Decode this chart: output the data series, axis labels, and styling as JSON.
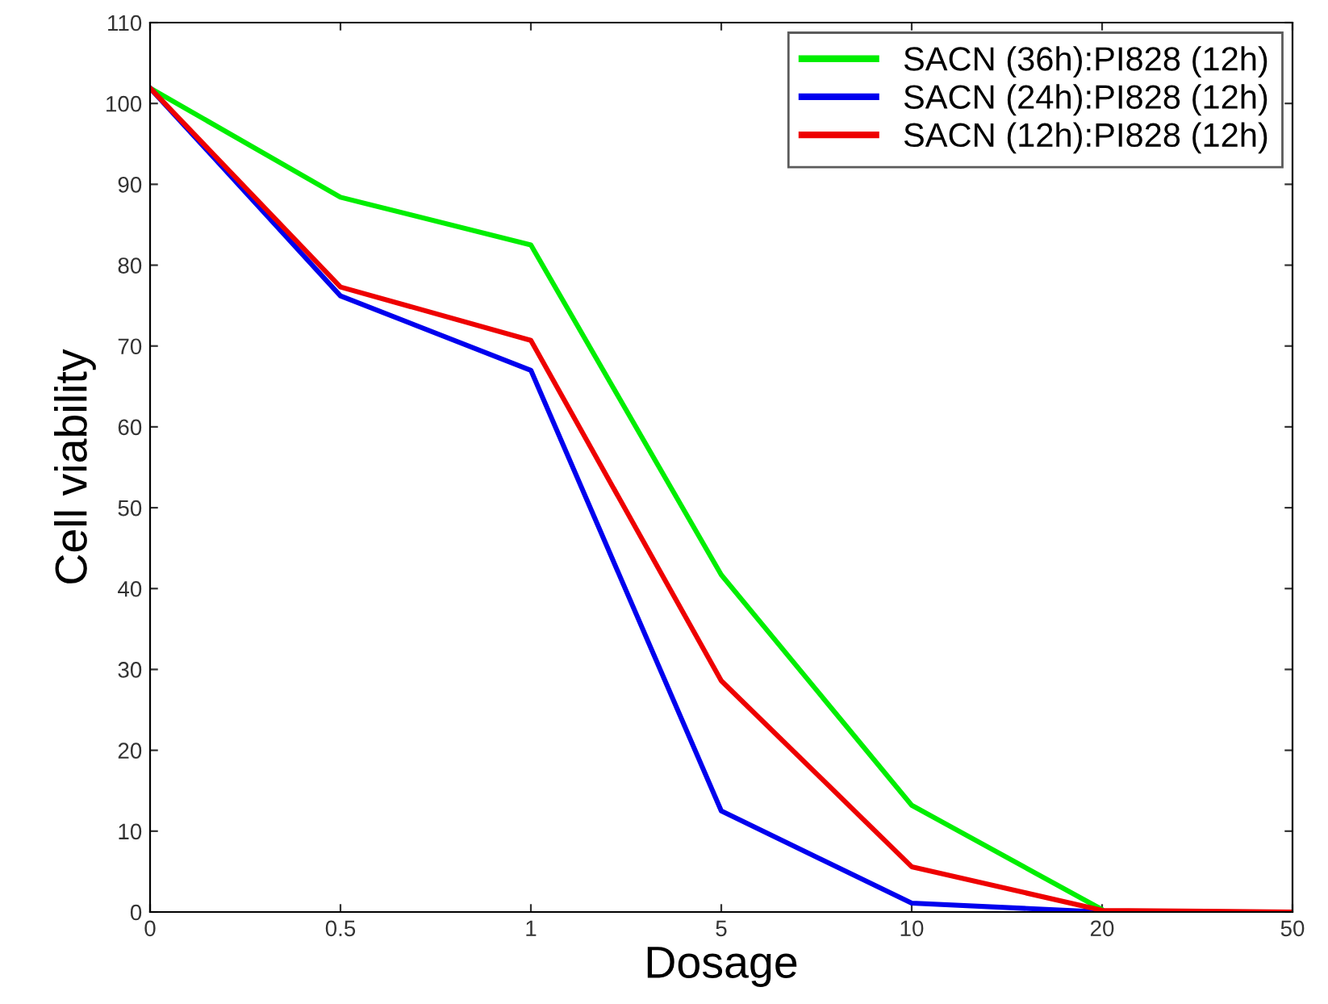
{
  "chart_data": {
    "type": "line",
    "xlabel": "Dosage",
    "ylabel": "Cell viability",
    "categories": [
      "0",
      "0.5",
      "1",
      "5",
      "10",
      "20",
      "50"
    ],
    "ylim": [
      0,
      110
    ],
    "yticks": [
      0,
      10,
      20,
      30,
      40,
      50,
      60,
      70,
      80,
      90,
      100,
      110
    ],
    "grid": false,
    "legend": "top right",
    "marker": "none",
    "line_style": "solid",
    "series": [
      {
        "name": "SACN (36h):PI828 (12h)",
        "color": "#00ee00",
        "values": [
          101.9,
          88.4,
          82.5,
          41.7,
          13.2,
          0.3,
          null
        ]
      },
      {
        "name": "SACN (24h):PI828 (12h)",
        "color": "#0000ee",
        "values": [
          101.9,
          76.2,
          67.0,
          12.5,
          1.1,
          0,
          null
        ]
      },
      {
        "name": "SACN (12h):PI828 (12h)",
        "color": "#ee0000",
        "values": [
          101.9,
          77.3,
          70.7,
          28.6,
          5.6,
          0.2,
          0
        ]
      }
    ]
  }
}
